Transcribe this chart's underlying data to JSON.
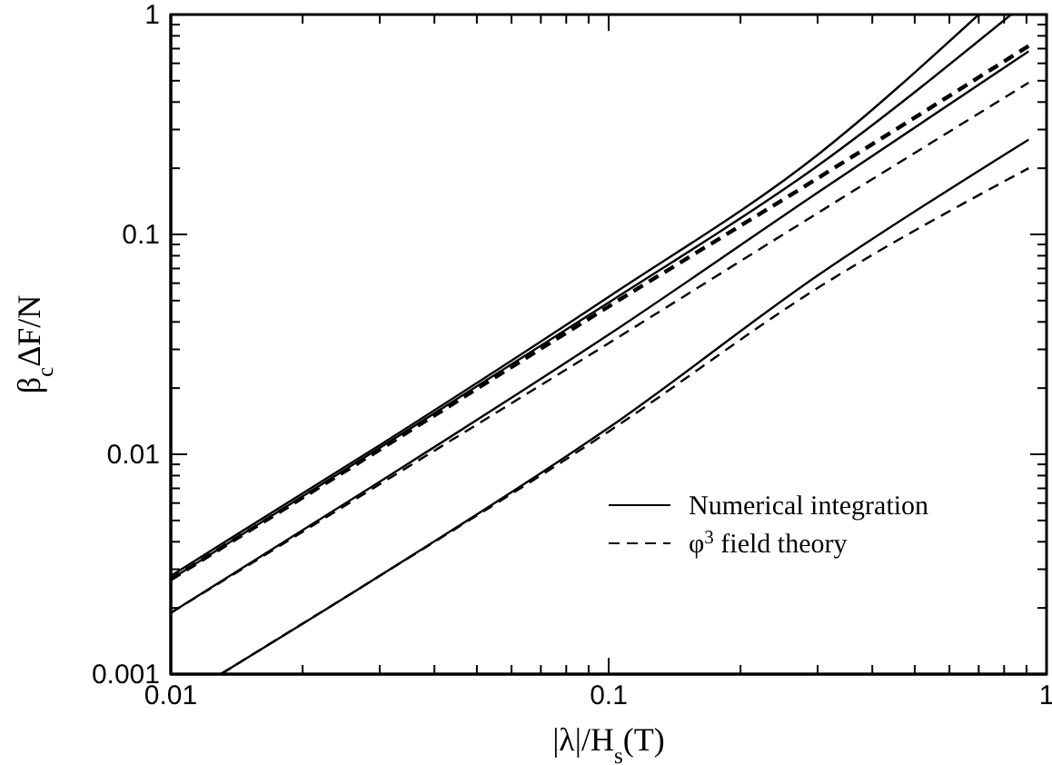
{
  "chart_data": {
    "type": "line",
    "xlabel": "|λ|/H$_{s}$(T)",
    "ylabel": "β$_{c}$ΔF/N",
    "log": "xy",
    "grid": false,
    "legend": "right",
    "marker": "none",
    "xlim": [
      0.01,
      1
    ],
    "ylim": [
      0.001,
      1
    ],
    "xticks": [
      0.01,
      {
        "value": 0.02,
        "label": null
      },
      {
        "value": 0.03,
        "label": null
      },
      {
        "value": 0.04,
        "label": null
      },
      {
        "value": 0.05,
        "label": null
      },
      {
        "value": 0.06,
        "label": null
      },
      {
        "value": 0.07,
        "label": null
      },
      {
        "value": 0.08,
        "label": null
      },
      {
        "value": 0.09,
        "label": null
      },
      0.1,
      {
        "value": 0.2,
        "label": null
      },
      {
        "value": 0.3,
        "label": null
      },
      {
        "value": 0.4,
        "label": null
      },
      {
        "value": 0.5,
        "label": null
      },
      {
        "value": 0.6,
        "label": null
      },
      {
        "value": 0.7,
        "label": null
      },
      {
        "value": 0.8,
        "label": null
      },
      {
        "value": 0.9,
        "label": null
      },
      1
    ],
    "yticks": [
      0.001,
      {
        "value": 0.002,
        "label": null
      },
      {
        "value": 0.003,
        "label": null
      },
      {
        "value": 0.004,
        "label": null
      },
      {
        "value": 0.005,
        "label": null
      },
      {
        "value": 0.006,
        "label": null
      },
      {
        "value": 0.007,
        "label": null
      },
      {
        "value": 0.008,
        "label": null
      },
      {
        "value": 0.009,
        "label": null
      },
      0.01,
      {
        "value": 0.02,
        "label": null
      },
      {
        "value": 0.03,
        "label": null
      },
      {
        "value": 0.04,
        "label": null
      },
      {
        "value": 0.05,
        "label": null
      },
      {
        "value": 0.06,
        "label": null
      },
      {
        "value": 0.07,
        "label": null
      },
      {
        "value": 0.08,
        "label": null
      },
      {
        "value": 0.09,
        "label": null
      },
      0.1,
      {
        "value": 0.2,
        "label": null
      },
      {
        "value": 0.3,
        "label": null
      },
      {
        "value": 0.4,
        "label": null
      },
      {
        "value": 0.5,
        "label": null
      },
      {
        "value": 0.6,
        "label": null
      },
      {
        "value": 0.7,
        "label": null
      },
      {
        "value": 0.8,
        "label": null
      },
      {
        "value": 0.9,
        "label": null
      },
      1
    ],
    "series": [
      {
        "name": "Numerical integration",
        "color": "#000000",
        "line_style": "solid",
        "x": [
          0.01,
          0.03,
          0.1,
          0.3,
          0.7
        ],
        "values": [
          0.0028,
          0.011,
          0.052,
          0.23,
          1
        ]
      },
      {
        "color": "#000000",
        "line_style": "solid",
        "x": [
          0.01,
          0.03,
          0.1,
          0.3,
          0.83
        ],
        "values": [
          0.0027,
          0.0107,
          0.049,
          0.205,
          1
        ]
      },
      {
        "color": "#000000",
        "line_style": "solid",
        "x": [
          0.01,
          0.03,
          0.1,
          0.3,
          0.91
        ],
        "values": [
          0.0019,
          0.0075,
          0.035,
          0.155,
          0.68
        ]
      },
      {
        "color": "#000000",
        "line_style": "solid",
        "x": [
          0.013,
          0.03,
          0.1,
          0.3,
          0.91
        ],
        "values": [
          0.001,
          0.0028,
          0.0132,
          0.065,
          0.27
        ]
      },
      {
        "name": "φ$^{3}$ field theory",
        "color": "#000000",
        "line_style": "dashed",
        "x": [
          0.01,
          0.03,
          0.1,
          0.3,
          0.91
        ],
        "values": [
          0.0027,
          0.0105,
          0.047,
          0.18,
          0.72
        ]
      },
      {
        "color": "#000000",
        "line_style": "dashed",
        "x": [
          0.01,
          0.03,
          0.1,
          0.3,
          0.91
        ],
        "values": [
          0.0019,
          0.0073,
          0.032,
          0.125,
          0.49
        ]
      },
      {
        "color": "#000000",
        "line_style": "dashed",
        "x": [
          0.013,
          0.03,
          0.1,
          0.3,
          0.91
        ],
        "values": [
          0.001,
          0.0028,
          0.0127,
          0.057,
          0.2
        ]
      }
    ]
  }
}
